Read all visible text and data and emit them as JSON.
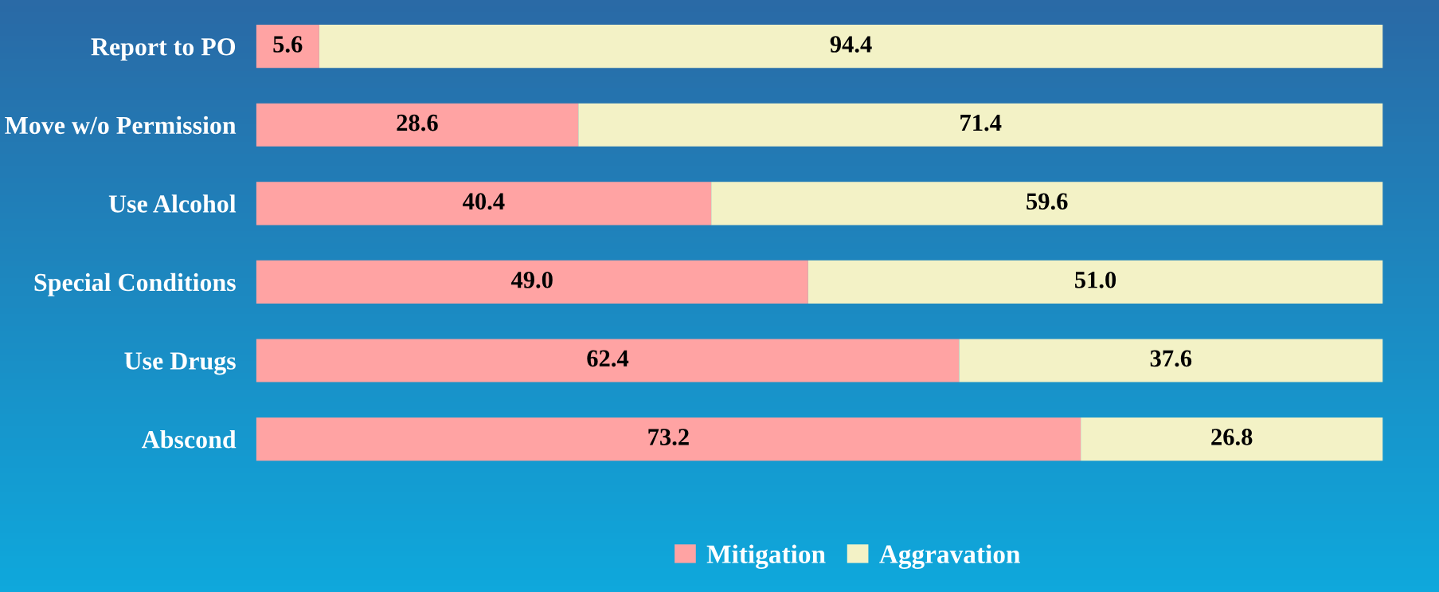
{
  "chart_data": {
    "type": "bar",
    "orientation": "horizontal",
    "stacked": true,
    "legend": "bottom",
    "grid": false,
    "categories": [
      "Report to PO",
      "Move w/o Permission",
      "Use Alcohol",
      "Special Conditions",
      "Use Drugs",
      "Abscond"
    ],
    "series": [
      {
        "name": "Mitigation",
        "color": "#ffa3a3",
        "values": [
          5.6,
          28.6,
          40.4,
          49.0,
          62.4,
          73.2
        ],
        "value_labels": [
          "5.6",
          "28.6",
          "40.4",
          "49.0",
          "62.4",
          "73.2"
        ]
      },
      {
        "name": "Aggravation",
        "color": "#f3f2c6",
        "values": [
          94.4,
          71.4,
          59.6,
          51.0,
          37.6,
          26.8
        ],
        "value_labels": [
          "94.4",
          "71.4",
          "59.6",
          "51.0",
          "37.6",
          "26.8"
        ]
      }
    ]
  }
}
